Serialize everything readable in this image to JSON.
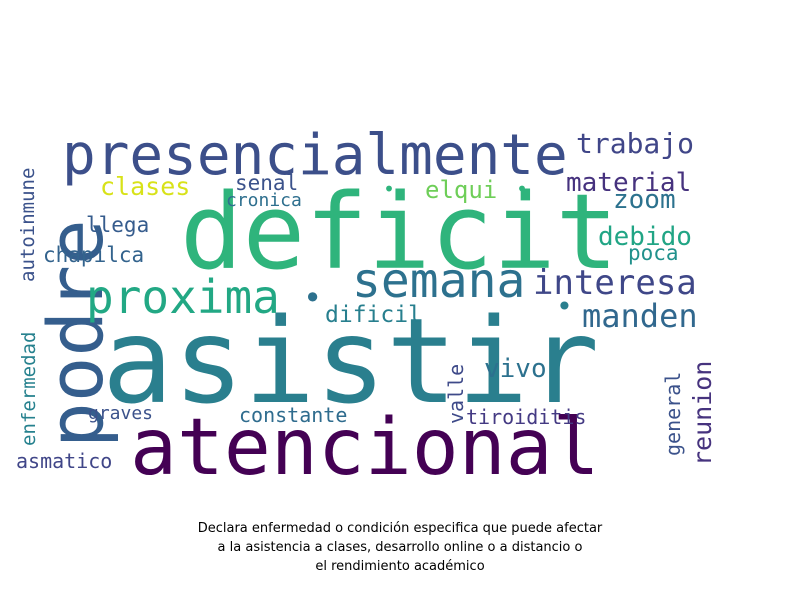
{
  "words": [
    {
      "text": "asistir",
      "color": "#2a7f8e"
    },
    {
      "text": "atencional",
      "color": "#440154"
    },
    {
      "text": "deficit",
      "color": "#2fb47c"
    },
    {
      "text": "presencialmente",
      "color": "#3c4f8a"
    },
    {
      "text": "podre",
      "color": "#355e8d"
    },
    {
      "text": "semana",
      "color": "#2d718e"
    },
    {
      "text": "proxima",
      "color": "#22a884"
    },
    {
      "text": "interesa",
      "color": "#3f4788"
    },
    {
      "text": "manden",
      "color": "#31688e"
    },
    {
      "text": "trabajo",
      "color": "#404688"
    },
    {
      "text": "material",
      "color": "#46327e"
    },
    {
      "text": "debido",
      "color": "#21a585"
    },
    {
      "text": "zoom",
      "color": "#2c728e"
    },
    {
      "text": "clases",
      "color": "#d8e219"
    },
    {
      "text": "elqui",
      "color": "#6ece58"
    },
    {
      "text": "senal",
      "color": "#3b528b"
    },
    {
      "text": "cronica",
      "color": "#2e6f8e"
    },
    {
      "text": "llega",
      "color": "#365c8d"
    },
    {
      "text": "chapilca",
      "color": "#33638d"
    },
    {
      "text": "poca",
      "color": "#21918c"
    },
    {
      "text": "dificil",
      "color": "#277f8e"
    },
    {
      "text": "vivo",
      "color": "#2c718e"
    },
    {
      "text": "reunion",
      "color": "#46337e"
    },
    {
      "text": "general",
      "color": "#3b528b"
    },
    {
      "text": "valle",
      "color": "#3e4a89"
    },
    {
      "text": "constante",
      "color": "#2f6c8e"
    },
    {
      "text": "tiroiditis",
      "color": "#443a83"
    },
    {
      "text": "graves",
      "color": "#3b528b"
    },
    {
      "text": "asmatico",
      "color": "#404688"
    },
    {
      "text": "enfermedad",
      "color": "#26818e"
    },
    {
      "text": "autoinmune",
      "color": "#3b528b"
    },
    {
      "text": "•",
      "color": "#2fb47c"
    },
    {
      "text": "•",
      "color": "#2fb47c"
    },
    {
      "text": "•",
      "color": "#2d718e"
    },
    {
      "text": "•",
      "color": "#2a7f8e"
    }
  ],
  "caption": [
    "Declara enfermedad o condición especifica que puede afectar",
    "a la asistencia a clases, desarrollo online o a distancio o",
    "el rendimiento académico"
  ]
}
